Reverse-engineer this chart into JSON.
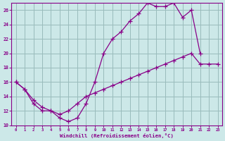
{
  "xlabel": "Windchill (Refroidissement éolien,°C)",
  "bg_color": "#cce8e8",
  "line_color": "#880088",
  "grid_color": "#99bbbb",
  "xlim_min": -0.5,
  "xlim_max": 23.5,
  "ylim_min": 10,
  "ylim_max": 27,
  "xticks": [
    0,
    1,
    2,
    3,
    4,
    5,
    6,
    7,
    8,
    9,
    10,
    11,
    12,
    13,
    14,
    15,
    16,
    17,
    18,
    19,
    20,
    21,
    22,
    23
  ],
  "yticks": [
    10,
    12,
    14,
    16,
    18,
    20,
    22,
    24,
    26
  ],
  "curve1_x": [
    0,
    1,
    2,
    3,
    4,
    5,
    6,
    7,
    8,
    9,
    10,
    11,
    12,
    13,
    14,
    15,
    16,
    17,
    18,
    19,
    20,
    21
  ],
  "curve1_y": [
    16,
    15,
    13,
    12,
    12,
    11,
    10.5,
    11,
    13,
    16,
    20,
    22,
    23,
    24.5,
    25.5,
    27,
    26.5,
    26.5,
    27,
    25,
    26,
    20
  ],
  "curve2_x": [
    0,
    1,
    2,
    3,
    4,
    5,
    6,
    7,
    8,
    9,
    10,
    11,
    12,
    13,
    14,
    15,
    16,
    17,
    18,
    19,
    20,
    21,
    22,
    23
  ],
  "curve2_y": [
    16,
    15,
    13.5,
    12.5,
    12,
    11.5,
    12,
    13,
    14,
    14.5,
    15,
    15.5,
    16,
    16.5,
    17,
    17.5,
    18,
    18.5,
    19,
    19.5,
    20,
    18.5,
    18.5,
    18.5
  ]
}
